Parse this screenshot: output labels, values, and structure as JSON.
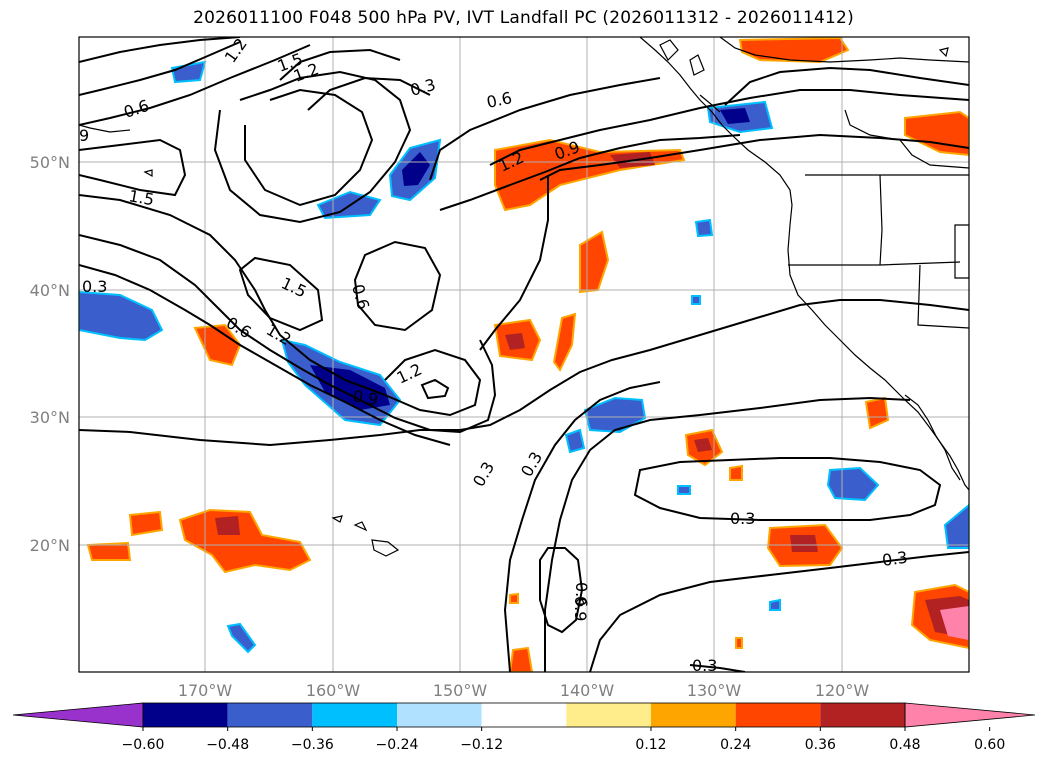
{
  "title": "2026011100 F048 500 hPa PV, IVT Landfall PC (2026011312 - 2026011412)",
  "lat_labels": [
    "50°N",
    "40°N",
    "30°N",
    "20°N"
  ],
  "lon_labels": [
    "170°W",
    "160°W",
    "150°W",
    "140°W",
    "130°W",
    "120°W"
  ],
  "colorbar": {
    "ticks": [
      "−0.60",
      "−0.48",
      "−0.36",
      "−0.24",
      "−0.12",
      "0.12",
      "0.24",
      "0.36",
      "0.48",
      "0.60"
    ],
    "colors": [
      "#9932CC",
      "#00008B",
      "#3A5FCD",
      "#00BFFF",
      "#B0E2FF",
      "#FFFFFF",
      "#FFEC8B",
      "#FFA500",
      "#FF4500",
      "#B22222",
      "#FF82AB"
    ]
  },
  "contour_labels": [
    "1.2",
    "1.5",
    "1.2",
    "0.3",
    "0.6",
    "0.6",
    "9",
    "1.5",
    "0.3",
    "1.5",
    "0.6",
    "1.2",
    "0.6",
    "1.2",
    "0.9",
    "0.9",
    "1.2",
    "0.9",
    "0.3",
    "0.3",
    "0.3",
    "0.6",
    "0.3",
    "0.3"
  ]
}
